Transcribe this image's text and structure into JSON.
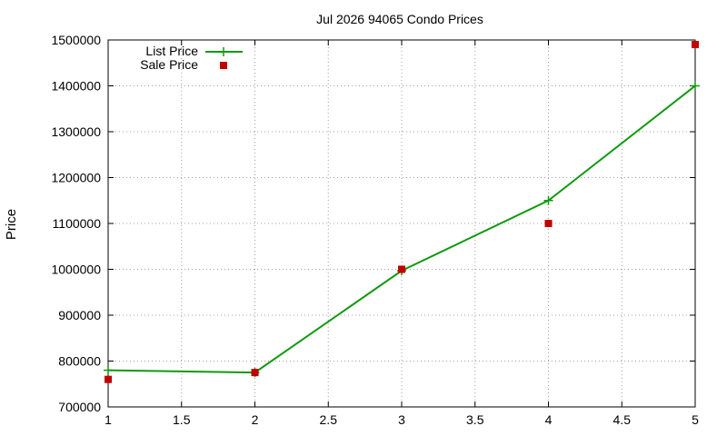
{
  "chart_data": {
    "type": "line",
    "title": "Jul 2026 94065 Condo Prices",
    "xlabel": "",
    "ylabel": "Price",
    "xlim": [
      1,
      5
    ],
    "ylim": [
      700000,
      1500000
    ],
    "x_ticks": [
      "1",
      "1.5",
      "2",
      "2.5",
      "3",
      "3.5",
      "4",
      "4.5",
      "5"
    ],
    "y_ticks": [
      "700000",
      "800000",
      "900000",
      "1000000",
      "1100000",
      "1200000",
      "1300000",
      "1400000",
      "1500000"
    ],
    "grid": true,
    "legend_position": "top-left",
    "series": [
      {
        "name": "List Price",
        "style": "line+plus",
        "color": "#109910",
        "x": [
          1,
          2,
          3,
          4,
          5
        ],
        "y": [
          780000,
          775000,
          997000,
          1150000,
          1400000
        ]
      },
      {
        "name": "Sale Price",
        "style": "square",
        "color": "#c00000",
        "x": [
          1,
          2,
          3,
          4,
          5
        ],
        "y": [
          760000,
          775000,
          1000000,
          1100000,
          1490000
        ]
      }
    ]
  }
}
